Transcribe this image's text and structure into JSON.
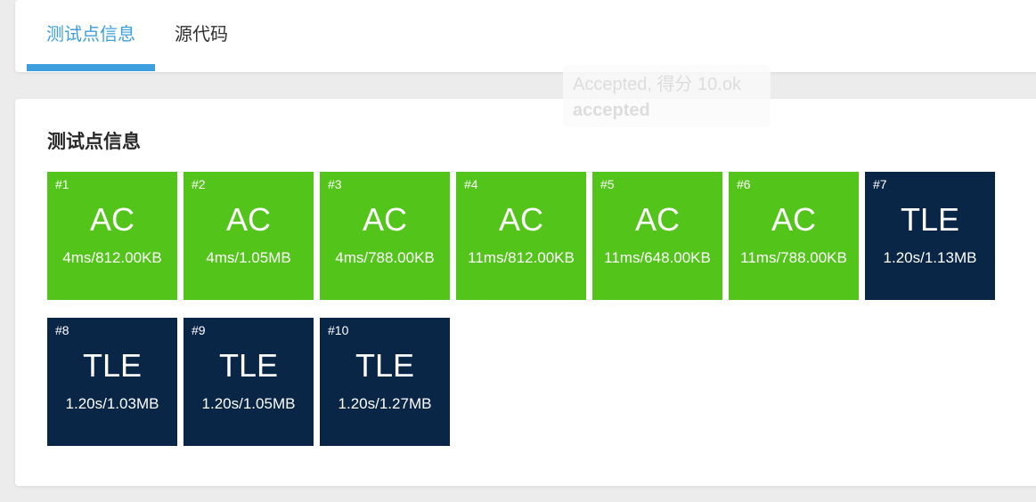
{
  "tabs": [
    {
      "label": "测试点信息",
      "active": true
    },
    {
      "label": "源代码",
      "active": false
    }
  ],
  "tooltip": {
    "line1": "Accepted, 得分 10.ok",
    "line2": "accepted"
  },
  "card": {
    "title": "测试点信息"
  },
  "testcases": [
    {
      "id": "#1",
      "status": "AC",
      "stats": "4ms/812.00KB"
    },
    {
      "id": "#2",
      "status": "AC",
      "stats": "4ms/1.05MB"
    },
    {
      "id": "#3",
      "status": "AC",
      "stats": "4ms/788.00KB"
    },
    {
      "id": "#4",
      "status": "AC",
      "stats": "11ms/812.00KB"
    },
    {
      "id": "#5",
      "status": "AC",
      "stats": "11ms/648.00KB"
    },
    {
      "id": "#6",
      "status": "AC",
      "stats": "11ms/788.00KB"
    },
    {
      "id": "#7",
      "status": "TLE",
      "stats": "1.20s/1.13MB"
    },
    {
      "id": "#8",
      "status": "TLE",
      "stats": "1.20s/1.03MB"
    },
    {
      "id": "#9",
      "status": "TLE",
      "stats": "1.20s/1.05MB"
    },
    {
      "id": "#10",
      "status": "TLE",
      "stats": "1.20s/1.27MB"
    }
  ],
  "colors": {
    "ac": "#52c41a",
    "tle": "#0a2647",
    "tab_active": "#3e9fdf",
    "page_bg": "#ececec"
  }
}
